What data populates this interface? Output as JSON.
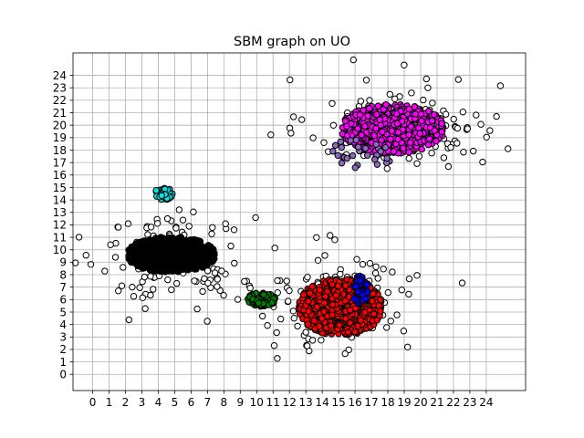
{
  "chart_data": {
    "type": "scatter",
    "title": "SBM graph on UO",
    "xlabel": "",
    "ylabel": "",
    "xlim": [
      -1.2,
      26.4
    ],
    "ylim": [
      -1.3,
      25.8
    ],
    "xticks": [
      0,
      1,
      2,
      3,
      4,
      5,
      6,
      7,
      8,
      9,
      10,
      11,
      12,
      13,
      14,
      15,
      16,
      17,
      18,
      19,
      20,
      21,
      22,
      23,
      24
    ],
    "yticks": [
      0,
      1,
      2,
      3,
      4,
      5,
      6,
      7,
      8,
      9,
      10,
      11,
      12,
      13,
      14,
      15,
      16,
      17,
      18,
      19,
      20,
      21,
      22,
      23,
      24
    ],
    "grid": true,
    "marker": "circle",
    "marker_edge_color": "#000000",
    "clusters": [
      {
        "color": "#ff00ff",
        "center": [
          18.3,
          19.7
        ],
        "spread": [
          2.2,
          1.4
        ],
        "count": 900
      },
      {
        "color": "#000000",
        "center": [
          4.8,
          9.6
        ],
        "spread": [
          1.9,
          1.0
        ],
        "count": 900
      },
      {
        "color": "#ff0000",
        "center": [
          15.1,
          5.4
        ],
        "spread": [
          1.8,
          1.6
        ],
        "count": 900
      },
      {
        "color": "#008000",
        "center": [
          10.3,
          6.0
        ],
        "spread": [
          0.6,
          0.4
        ],
        "count": 140
      },
      {
        "color": "#0000ff",
        "center": [
          16.3,
          6.8
        ],
        "spread": [
          0.35,
          0.8
        ],
        "count": 90
      },
      {
        "color": "#00e5e5",
        "center": [
          4.3,
          14.5
        ],
        "spread": [
          0.4,
          0.35
        ],
        "count": 45
      },
      {
        "color": "#8a6bbf",
        "center": [
          16.5,
          17.8
        ],
        "spread": [
          1.5,
          0.9
        ],
        "count": 35
      }
    ],
    "unassigned": {
      "color": "#ffffff",
      "centers": [
        [
          19.0,
          20.0
        ],
        [
          5.0,
          9.5
        ],
        [
          14.8,
          5.8
        ]
      ],
      "spread": [
        3.2,
        2.2
      ],
      "count": 420
    }
  }
}
